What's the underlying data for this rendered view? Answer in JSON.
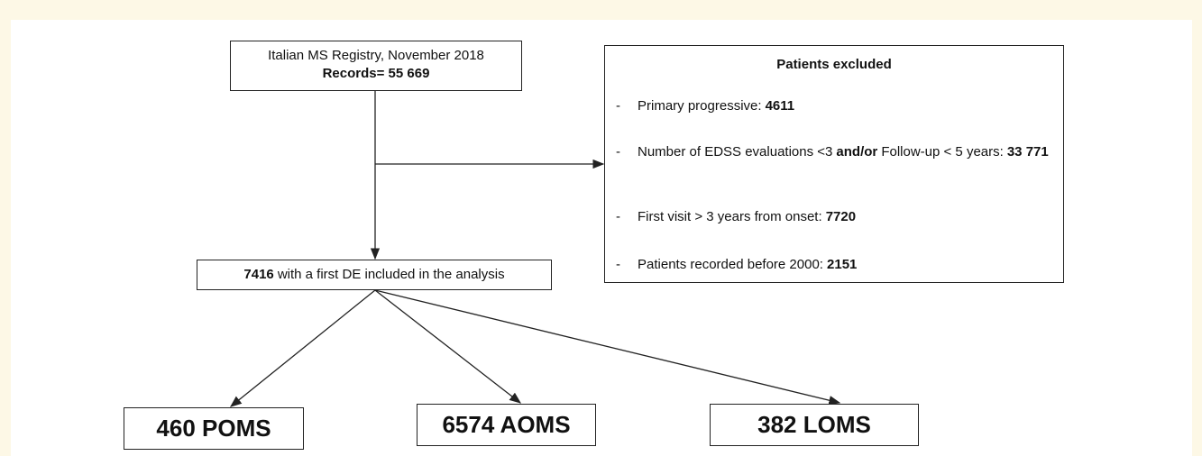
{
  "source": {
    "lines": [
      [
        {
          "text": "Italian MS Registry, November 2018",
          "bold": false
        }
      ],
      [
        {
          "text": "Records= 55 669",
          "bold": true
        }
      ]
    ]
  },
  "excluded": {
    "title": "Patients excluded",
    "bullet": "-",
    "items": [
      [
        {
          "text": "Primary progressive:",
          "bold": false
        },
        {
          "text": "4611",
          "bold": true
        }
      ],
      [
        {
          "text": "Number of EDSS evaluations <3",
          "bold": false
        },
        {
          "text": "and/or",
          "bold": true
        },
        {
          "text": "Follow-up < 5 years:",
          "bold": false
        },
        {
          "text": "33 771",
          "bold": true
        }
      ],
      [
        {
          "text": "First visit > 3 years from onset:",
          "bold": false
        },
        {
          "text": "7720",
          "bold": true
        }
      ],
      [
        {
          "text": "Patients recorded before 2000:",
          "bold": false
        },
        {
          "text": "2151",
          "bold": true
        }
      ]
    ]
  },
  "included": [
    {
      "text": "7416",
      "bold": true
    },
    {
      "text": "with a first DE included in the analysis",
      "bold": false
    }
  ],
  "outcomes": [
    "460 POMS",
    "6574 AOMS",
    "382 LOMS"
  ]
}
